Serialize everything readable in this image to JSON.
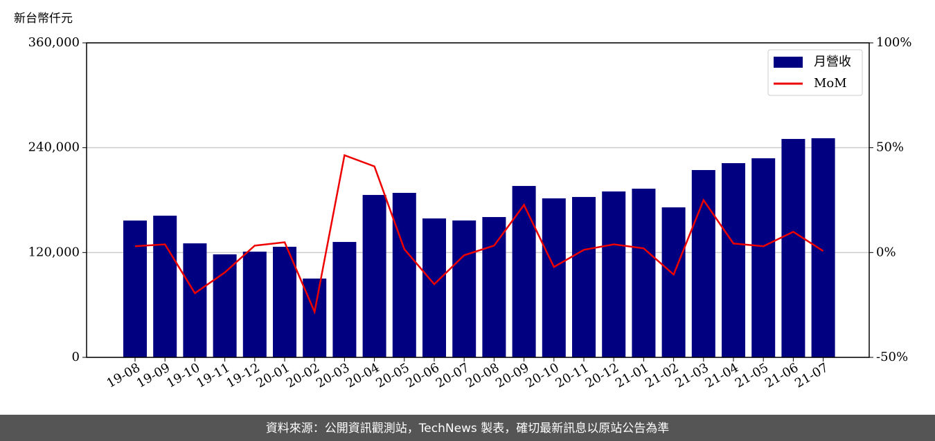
{
  "chart_data": {
    "type": "bar_line",
    "y_axis_label": "新台幣仟元",
    "source_note": "資料來源：公開資訊觀測站，TechNews 製表，確切最新訊息以原站公告為準",
    "categories": [
      "19-08",
      "19-09",
      "19-10",
      "19-11",
      "19-12",
      "20-01",
      "20-02",
      "20-03",
      "20-04",
      "20-05",
      "20-06",
      "20-07",
      "20-08",
      "20-09",
      "20-10",
      "20-11",
      "20-12",
      "21-01",
      "21-02",
      "21-03",
      "21-04",
      "21-05",
      "21-06",
      "21-07"
    ],
    "series": [
      {
        "name": "月營收",
        "type": "bar",
        "color": "#000080",
        "values": [
          156600,
          162200,
          130500,
          117900,
          121000,
          126600,
          90200,
          132100,
          185900,
          188300,
          159000,
          156700,
          160600,
          196200,
          182000,
          183600,
          189900,
          193100,
          171700,
          214400,
          222300,
          227900,
          250000,
          250800
        ]
      },
      {
        "name": "MoM",
        "type": "line",
        "axis": "y2",
        "color": "#ee0000",
        "values": [
          3.0,
          3.9,
          -19.4,
          -9.5,
          3.3,
          4.9,
          -28.3,
          46.4,
          41.1,
          1.6,
          -15.1,
          -1.3,
          3.3,
          22.7,
          -6.9,
          1.3,
          3.9,
          2.0,
          -10.5,
          25.0,
          4.3,
          3.0,
          9.9,
          0.7
        ]
      }
    ],
    "ylim": [
      0,
      360000
    ],
    "yticks": [
      0,
      {
        "value": 120000,
        "label": "120,000"
      },
      {
        "value": 240000,
        "label": "240,000"
      },
      {
        "value": 360000,
        "label": "360,000"
      }
    ],
    "y2lim": [
      -50,
      100
    ],
    "y2ticks": [
      {
        "value": -50,
        "label": "-50%"
      },
      {
        "value": 0,
        "label": "0%"
      },
      {
        "value": 50,
        "label": "50%"
      },
      {
        "value": 100,
        "label": "100%"
      }
    ],
    "grid": true,
    "legend": "upper right"
  }
}
